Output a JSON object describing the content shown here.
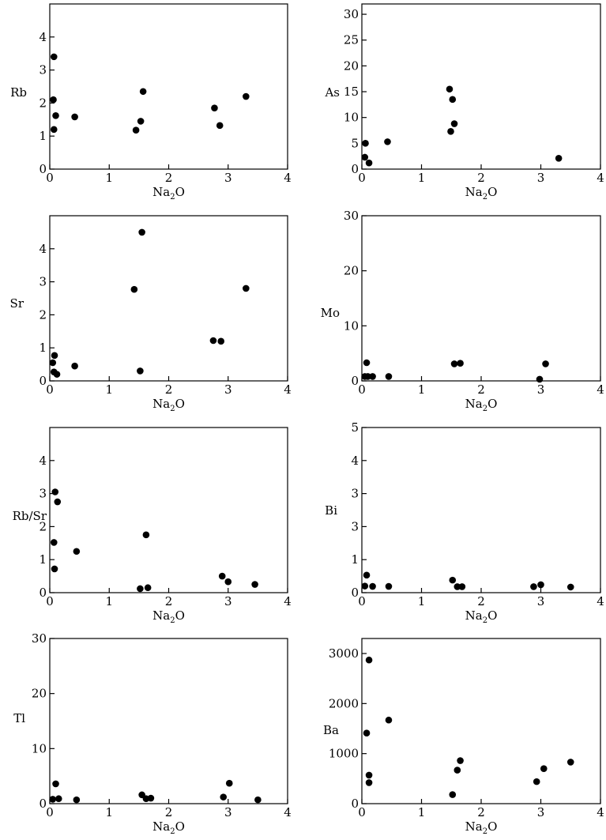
{
  "chart_data": [
    {
      "type": "scatter",
      "ylabel": "Rb",
      "xlabel": "Na₂O",
      "xlim": [
        0,
        4
      ],
      "ylim": [
        0,
        5
      ],
      "xticks": [
        "0",
        "1",
        "2",
        "3",
        "4"
      ],
      "yticks": [
        "0",
        "1",
        "2",
        "3",
        "4"
      ],
      "points": [
        [
          0.07,
          3.4
        ],
        [
          0.06,
          2.1
        ],
        [
          0.1,
          1.62
        ],
        [
          0.07,
          1.2
        ],
        [
          0.42,
          1.58
        ],
        [
          1.45,
          1.18
        ],
        [
          1.53,
          1.45
        ],
        [
          1.57,
          2.35
        ],
        [
          2.77,
          1.85
        ],
        [
          2.86,
          1.32
        ],
        [
          3.3,
          2.2
        ]
      ]
    },
    {
      "type": "scatter",
      "ylabel": "As",
      "xlabel": "Na₂O",
      "xlim": [
        0,
        4
      ],
      "ylim": [
        0,
        32
      ],
      "xticks": [
        "0",
        "1",
        "2",
        "3",
        "4"
      ],
      "yticks": [
        "0",
        "5",
        "10",
        "15",
        "20",
        "25",
        "30"
      ],
      "points": [
        [
          0.06,
          5
        ],
        [
          0.05,
          2.3
        ],
        [
          0.12,
          1.2
        ],
        [
          0.43,
          5.3
        ],
        [
          1.47,
          15.5
        ],
        [
          1.52,
          13.5
        ],
        [
          1.55,
          8.8
        ],
        [
          1.49,
          7.3
        ],
        [
          3.3,
          2.1
        ]
      ]
    },
    {
      "type": "scatter",
      "ylabel": "Sr",
      "xlabel": "Na₂O",
      "xlim": [
        0,
        4
      ],
      "ylim": [
        0,
        5
      ],
      "xticks": [
        "0",
        "1",
        "2",
        "3",
        "4"
      ],
      "yticks": [
        "0",
        "1",
        "2",
        "3",
        "4"
      ],
      "points": [
        [
          0.05,
          0.55
        ],
        [
          0.08,
          0.77
        ],
        [
          0.07,
          0.27
        ],
        [
          0.12,
          0.2
        ],
        [
          0.42,
          0.45
        ],
        [
          1.42,
          2.77
        ],
        [
          1.55,
          4.5
        ],
        [
          1.52,
          0.3
        ],
        [
          2.75,
          1.22
        ],
        [
          2.88,
          1.2
        ],
        [
          3.3,
          2.8
        ]
      ]
    },
    {
      "type": "scatter",
      "ylabel": "Mo",
      "xlabel": "Na₂O",
      "xlim": [
        0,
        4
      ],
      "ylim": [
        0,
        30
      ],
      "xticks": [
        "0",
        "1",
        "2",
        "3",
        "4"
      ],
      "yticks": [
        "0",
        "10",
        "20",
        "30"
      ],
      "points": [
        [
          0.08,
          3.3
        ],
        [
          0.05,
          0.8
        ],
        [
          0.1,
          0.8
        ],
        [
          0.18,
          0.8
        ],
        [
          0.45,
          0.8
        ],
        [
          1.55,
          3.1
        ],
        [
          1.65,
          3.2
        ],
        [
          2.98,
          0.3
        ],
        [
          3.08,
          3.1
        ]
      ]
    },
    {
      "type": "scatter",
      "ylabel": "Rb/Sr",
      "xlabel": "Na₂O",
      "xlim": [
        0,
        4
      ],
      "ylim": [
        0,
        5
      ],
      "xticks": [
        "0",
        "1",
        "2",
        "3",
        "4"
      ],
      "yticks": [
        "0",
        "1",
        "2",
        "3",
        "4"
      ],
      "points": [
        [
          0.09,
          3.05
        ],
        [
          0.13,
          2.75
        ],
        [
          0.07,
          1.52
        ],
        [
          0.08,
          0.72
        ],
        [
          0.45,
          1.25
        ],
        [
          1.52,
          0.12
        ],
        [
          1.65,
          0.15
        ],
        [
          1.62,
          1.75
        ],
        [
          2.9,
          0.5
        ],
        [
          3.0,
          0.33
        ],
        [
          3.45,
          0.25
        ]
      ]
    },
    {
      "type": "scatter",
      "ylabel": "Bi",
      "xlabel": "Na₂O",
      "xlim": [
        0,
        4
      ],
      "ylim": [
        0,
        5
      ],
      "xticks": [
        "0",
        "1",
        "2",
        "3",
        "4"
      ],
      "yticks": [
        "0",
        "1",
        "3",
        "4",
        "5"
      ],
      "yticks_dup": [
        "3"
      ],
      "points": [
        [
          0.05,
          0.2
        ],
        [
          0.08,
          0.53
        ],
        [
          0.18,
          0.19
        ],
        [
          0.45,
          0.19
        ],
        [
          1.52,
          0.38
        ],
        [
          1.6,
          0.18
        ],
        [
          1.68,
          0.18
        ],
        [
          2.88,
          0.18
        ],
        [
          3.0,
          0.24
        ],
        [
          3.5,
          0.17
        ]
      ]
    },
    {
      "type": "scatter",
      "ylabel": "Tl",
      "xlabel": "Na₂O",
      "xlim": [
        0,
        4
      ],
      "ylim": [
        0,
        30
      ],
      "xticks": [
        "0",
        "1",
        "2",
        "3",
        "4"
      ],
      "yticks": [
        "0",
        "10",
        "20",
        "30"
      ],
      "points": [
        [
          0.05,
          0.8
        ],
        [
          0.1,
          3.6
        ],
        [
          0.15,
          0.9
        ],
        [
          0.45,
          0.7
        ],
        [
          1.55,
          1.6
        ],
        [
          1.62,
          0.9
        ],
        [
          1.7,
          1.0
        ],
        [
          2.92,
          1.2
        ],
        [
          3.02,
          3.7
        ],
        [
          3.5,
          0.7
        ]
      ]
    },
    {
      "type": "scatter",
      "ylabel": "Ba",
      "xlabel": "Na₂O",
      "xlim": [
        0,
        4
      ],
      "ylim": [
        0,
        3300
      ],
      "xticks": [
        "0",
        "1",
        "2",
        "3",
        "4"
      ],
      "yticks": [
        "0",
        "1000",
        "2000",
        "3000"
      ],
      "points": [
        [
          0.12,
          2870
        ],
        [
          0.08,
          1410
        ],
        [
          0.12,
          570
        ],
        [
          0.12,
          420
        ],
        [
          0.45,
          1670
        ],
        [
          1.52,
          180
        ],
        [
          1.6,
          670
        ],
        [
          1.65,
          860
        ],
        [
          2.93,
          440
        ],
        [
          3.05,
          700
        ],
        [
          3.5,
          830
        ]
      ]
    }
  ]
}
